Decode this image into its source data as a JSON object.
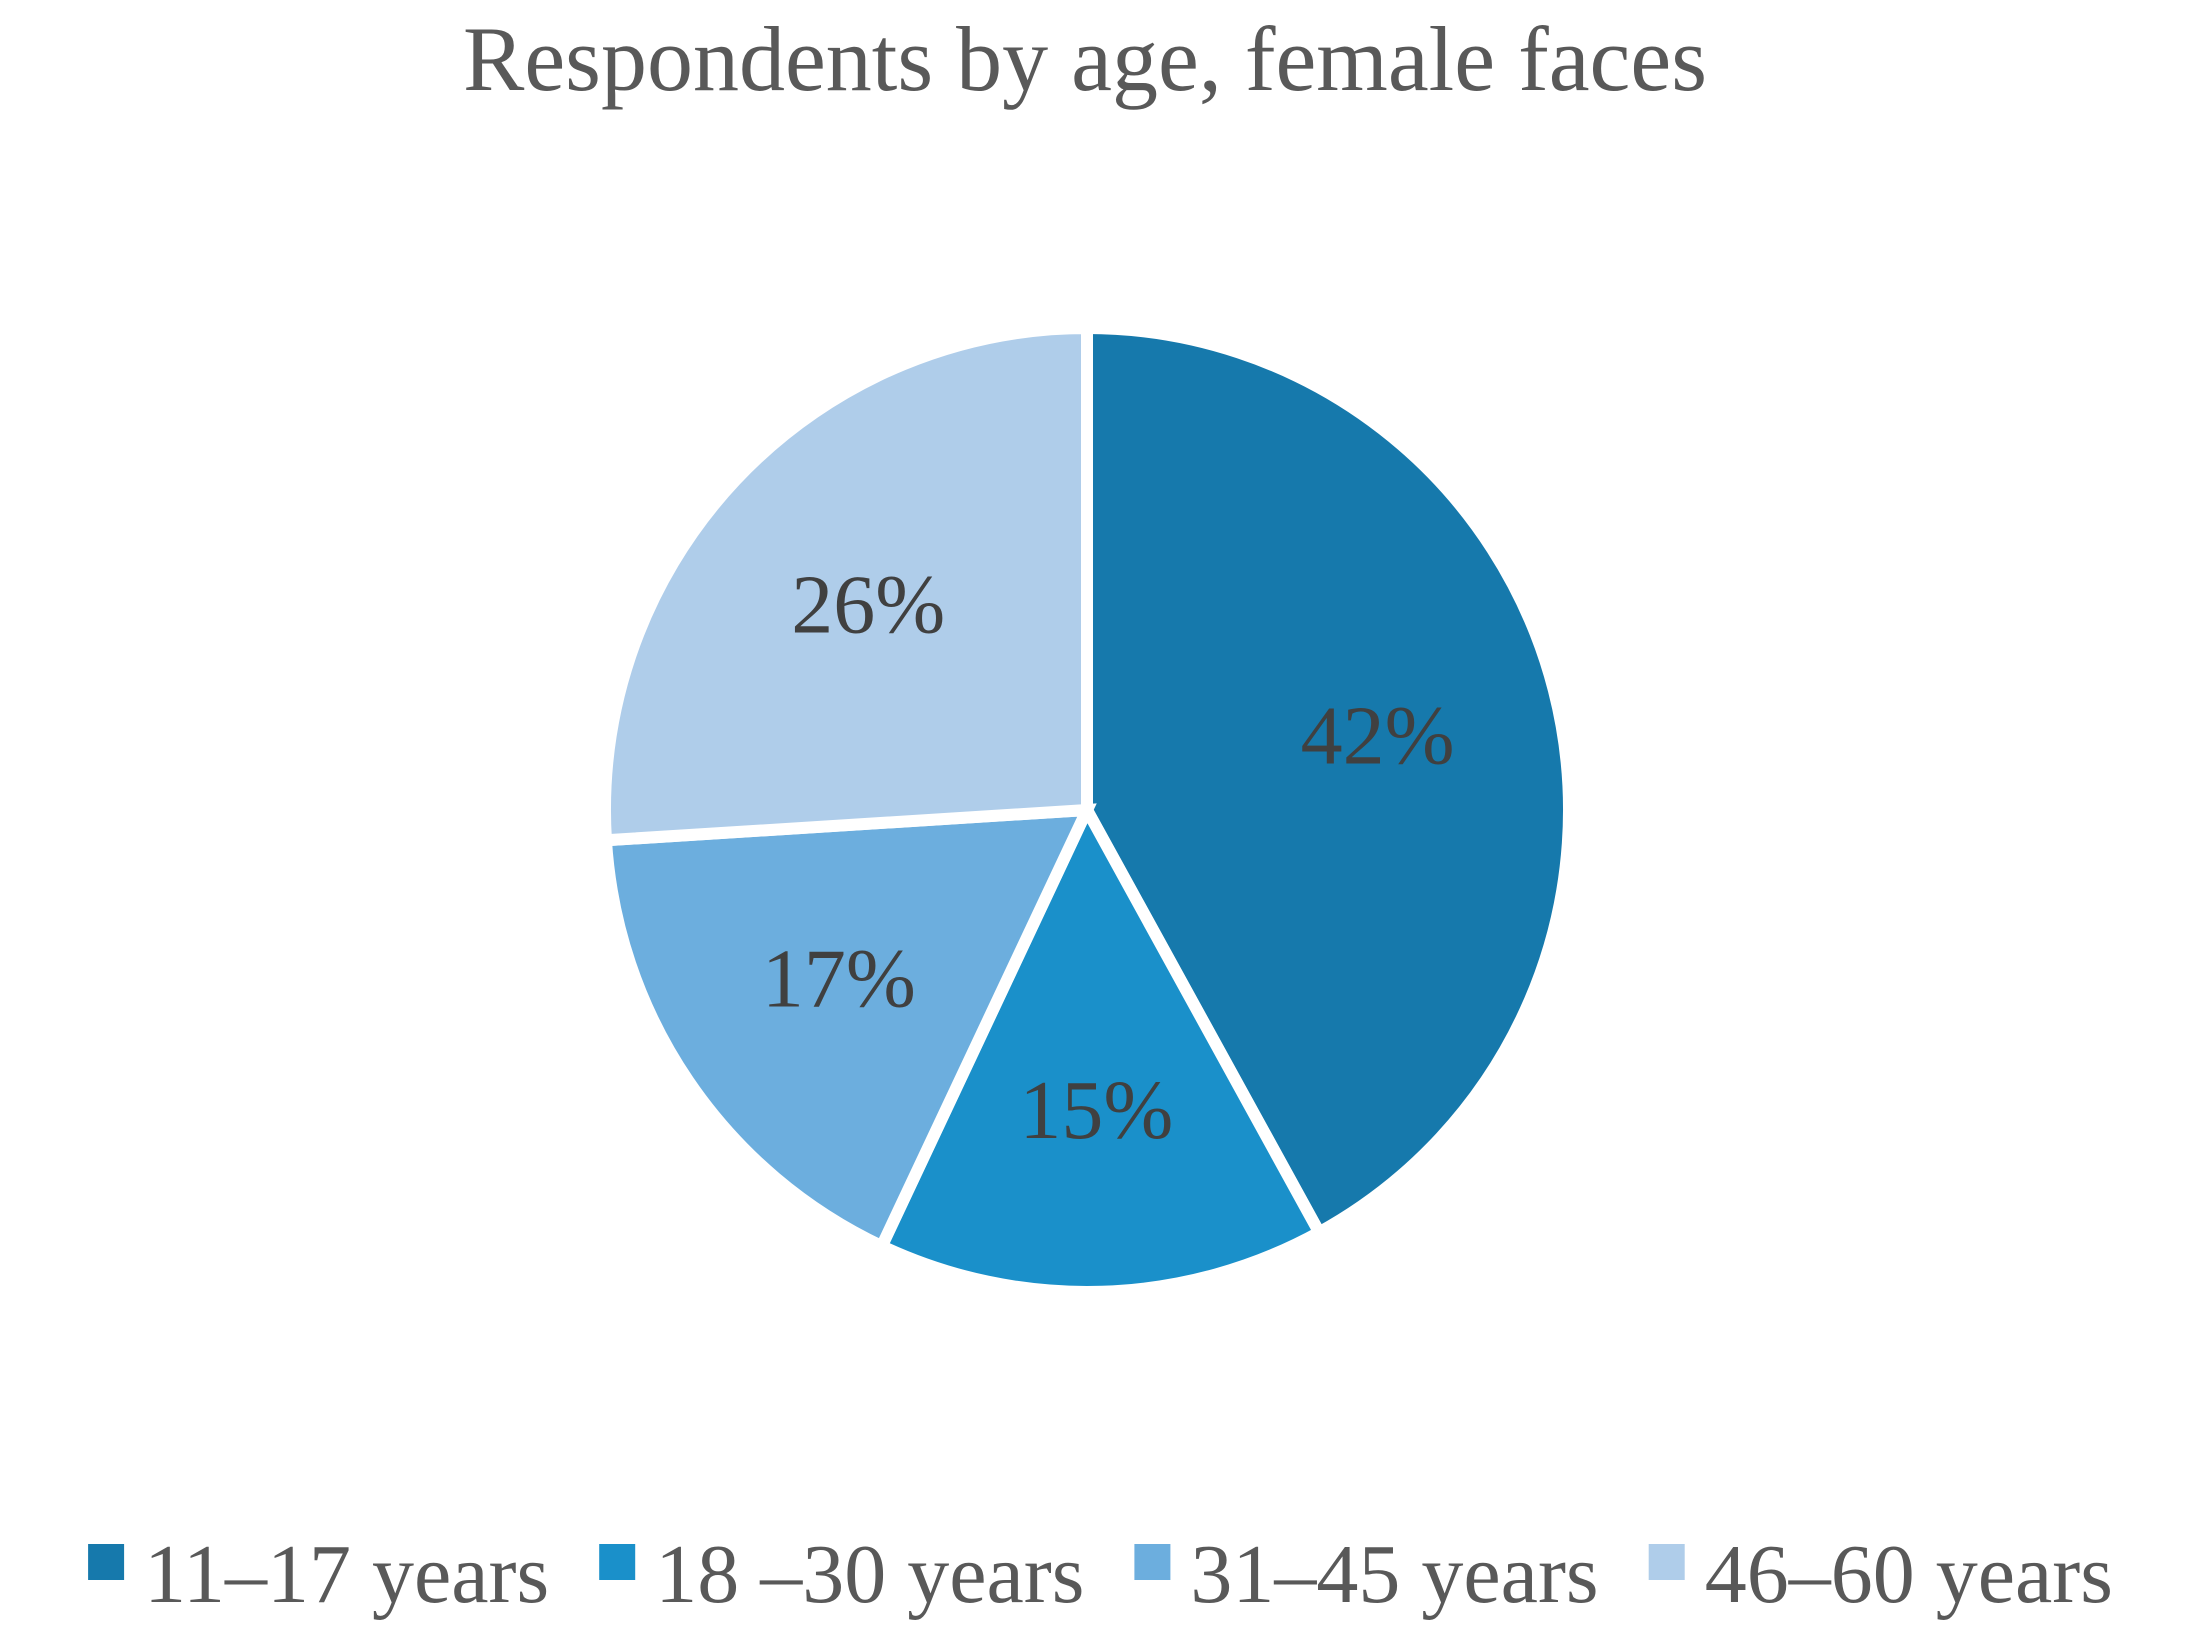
{
  "chart_data": {
    "type": "pie",
    "title": "Respondents by age, female faces",
    "categories": [
      "11–17 years",
      "18 –30 years",
      "31–45 years",
      "46–60 years"
    ],
    "values": [
      42,
      15,
      17,
      26
    ],
    "labels": [
      "42%",
      "15%",
      "17%",
      "26%"
    ],
    "colors": [
      "#1679AC",
      "#1A90CA",
      "#6CAEDE",
      "#AFCDEA"
    ],
    "start_angle_deg": 0,
    "direction": "clockwise",
    "legend_position": "bottom"
  }
}
